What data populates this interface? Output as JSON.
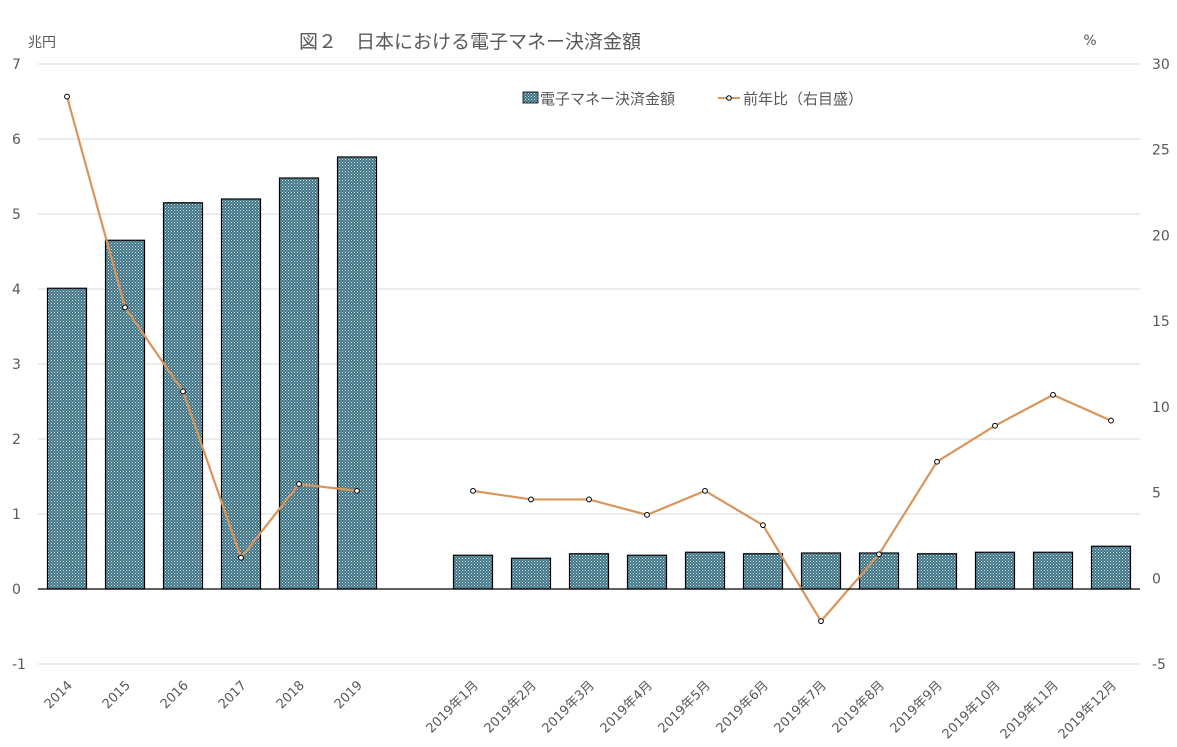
{
  "chart_data": {
    "type": "bar+line",
    "title": "図２　日本における電子マネー決済金額",
    "left_axis_unit": "兆円",
    "right_axis_unit": "%",
    "categories": [
      "2014",
      "2015",
      "2016",
      "2017",
      "2018",
      "2019",
      "",
      "2019年1月",
      "2019年2月",
      "2019年3月",
      "2019年4月",
      "2019年5月",
      "2019年6月",
      "2019年7月",
      "2019年8月",
      "2019年9月",
      "2019年10月",
      "2019年11月",
      "2019年12月"
    ],
    "series": [
      {
        "name": "電子マネー決済金額",
        "type": "bar",
        "axis": "left",
        "values": [
          4.01,
          4.65,
          5.15,
          5.2,
          5.48,
          5.76,
          null,
          0.45,
          0.41,
          0.47,
          0.45,
          0.49,
          0.47,
          0.48,
          0.48,
          0.47,
          0.49,
          0.49,
          0.57
        ]
      },
      {
        "name": "前年比（右目盛）",
        "type": "line",
        "axis": "right",
        "values": [
          28.1,
          15.8,
          10.9,
          1.2,
          5.5,
          5.1,
          null,
          5.1,
          4.6,
          4.6,
          3.7,
          5.1,
          3.1,
          -2.5,
          1.4,
          6.8,
          8.9,
          10.7,
          9.2
        ]
      }
    ],
    "left_ylim": [
      -1,
      7
    ],
    "left_ticks": [
      "7",
      "6",
      "5",
      "4",
      "3",
      "2",
      "1",
      "0",
      "-1"
    ],
    "right_ylim": [
      -5,
      30
    ],
    "right_ticks": [
      "30",
      "25",
      "20",
      "15",
      "10",
      "5",
      "0",
      "-5"
    ],
    "legend_position": "top-right",
    "grid": true,
    "colors": {
      "bar_fill": "#5b8c99",
      "bar_border": "#000000",
      "line": "#d9955a",
      "grid": "#d9d9d9"
    }
  }
}
